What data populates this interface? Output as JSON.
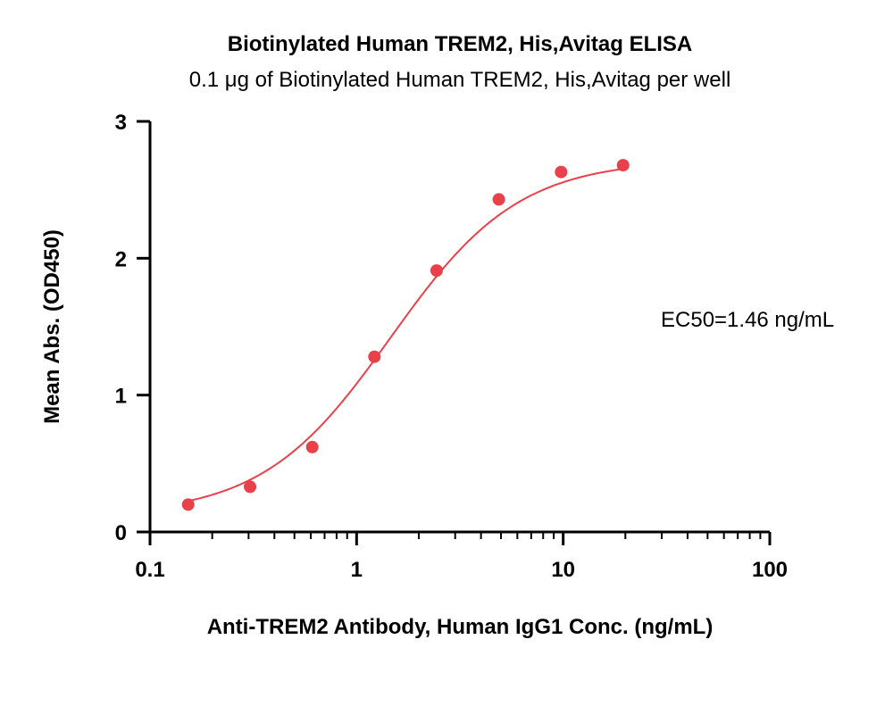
{
  "chart_data": {
    "type": "scatter",
    "title": "Biotinylated Human TREM2, His,Avitag ELISA",
    "subtitle": "0.1 μg of Biotinylated Human TREM2, His,Avitag per well",
    "xlabel": "Anti-TREM2 Antibody, Human IgG1 Conc. (ng/mL)",
    "ylabel": "Mean Abs. (OD450)",
    "x_scale": "log",
    "xlim": [
      0.1,
      100
    ],
    "ylim": [
      0,
      3
    ],
    "x_ticks": [
      0.1,
      1,
      10,
      100
    ],
    "x_tick_labels": [
      "0.1",
      "1",
      "10",
      "100"
    ],
    "y_ticks": [
      0,
      1,
      2,
      3
    ],
    "y_tick_labels": [
      "0",
      "1",
      "2",
      "3"
    ],
    "grid": false,
    "series": [
      {
        "x": [
          0.153,
          0.305,
          0.61,
          1.22,
          2.44,
          4.88,
          9.77,
          19.5
        ],
        "y": [
          0.2,
          0.33,
          0.62,
          1.28,
          1.91,
          2.43,
          2.63,
          2.68
        ],
        "color": "#e8414a",
        "fit": "4PL"
      }
    ],
    "annotations": [
      {
        "text": "EC50=1.46 ng/mL"
      }
    ]
  }
}
